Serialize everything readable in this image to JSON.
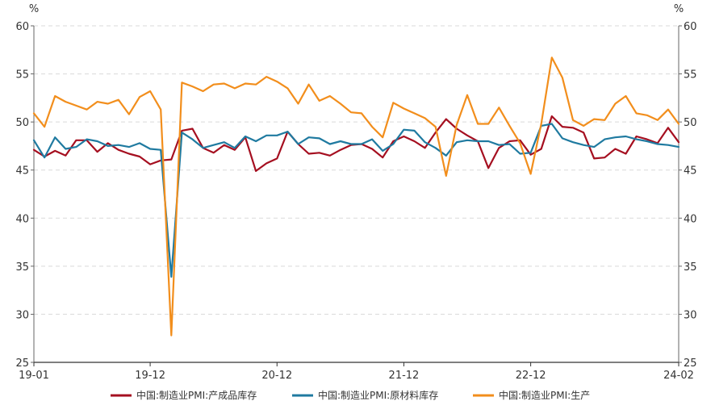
{
  "chart_data": {
    "type": "line",
    "title": "",
    "left_unit": "%",
    "right_unit": "%",
    "ylim": [
      25,
      60
    ],
    "yticks": [
      25,
      30,
      35,
      40,
      45,
      50,
      55,
      60
    ],
    "grid": true,
    "legend_position": "bottom",
    "x": [
      "19-01",
      "19-02",
      "19-03",
      "19-04",
      "19-05",
      "19-06",
      "19-07",
      "19-08",
      "19-09",
      "19-10",
      "19-11",
      "19-12",
      "20-01",
      "20-02",
      "20-03",
      "20-04",
      "20-05",
      "20-06",
      "20-07",
      "20-08",
      "20-09",
      "20-10",
      "20-11",
      "20-12",
      "21-01",
      "21-02",
      "21-03",
      "21-04",
      "21-05",
      "21-06",
      "21-07",
      "21-08",
      "21-09",
      "21-10",
      "21-11",
      "21-12",
      "22-01",
      "22-02",
      "22-03",
      "22-04",
      "22-05",
      "22-06",
      "22-07",
      "22-08",
      "22-09",
      "22-10",
      "22-11",
      "22-12",
      "23-01",
      "23-02",
      "23-03",
      "23-04",
      "23-05",
      "23-06",
      "23-07",
      "23-08",
      "23-09",
      "23-10",
      "23-11",
      "23-12",
      "24-01",
      "24-02"
    ],
    "x_tick_labels": [
      {
        "index": 0,
        "label": "19-01"
      },
      {
        "index": 11,
        "label": "19-12"
      },
      {
        "index": 23,
        "label": "20-12"
      },
      {
        "index": 35,
        "label": "21-12"
      },
      {
        "index": 47,
        "label": "22-12"
      },
      {
        "index": 61,
        "label": "24-02"
      }
    ],
    "series": [
      {
        "name": "中国:制造业PMI:产成品库存",
        "color": "#a50f20",
        "values": [
          47.1,
          46.4,
          47.0,
          46.5,
          48.1,
          48.1,
          46.9,
          47.8,
          47.1,
          46.7,
          46.4,
          45.6,
          46.0,
          46.1,
          49.1,
          49.3,
          47.3,
          46.8,
          47.6,
          47.1,
          48.4,
          44.9,
          45.7,
          46.2,
          49.0,
          47.7,
          46.7,
          46.8,
          46.5,
          47.1,
          47.6,
          47.7,
          47.2,
          46.3,
          48.0,
          48.5,
          48.0,
          47.3,
          48.9,
          50.3,
          49.3,
          48.6,
          48.0,
          45.2,
          47.3,
          48.0,
          48.1,
          46.6,
          47.2,
          50.6,
          49.5,
          49.4,
          48.9,
          46.2,
          46.3,
          47.2,
          46.7,
          48.5,
          48.2,
          47.8,
          49.4,
          47.9
        ]
      },
      {
        "name": "中国:制造业PMI:原材料库存",
        "color": "#1f7aa0",
        "values": [
          48.1,
          46.3,
          48.4,
          47.2,
          47.4,
          48.2,
          48.0,
          47.5,
          47.6,
          47.4,
          47.8,
          47.2,
          47.1,
          33.9,
          48.9,
          48.2,
          47.3,
          47.6,
          47.9,
          47.3,
          48.5,
          48.0,
          48.6,
          48.6,
          49.0,
          47.7,
          48.4,
          48.3,
          47.7,
          48.0,
          47.7,
          47.7,
          48.2,
          47.0,
          47.7,
          49.2,
          49.1,
          47.9,
          47.3,
          46.5,
          47.9,
          48.1,
          48.0,
          48.0,
          47.6,
          47.7,
          46.7,
          46.8,
          49.6,
          49.8,
          48.3,
          47.9,
          47.6,
          47.4,
          48.2,
          48.4,
          48.5,
          48.2,
          48.0,
          47.7,
          47.6,
          47.4
        ]
      },
      {
        "name": "中国:制造业PMI:生产",
        "color": "#f28e1c",
        "values": [
          50.9,
          49.5,
          52.7,
          52.1,
          51.7,
          51.3,
          52.1,
          51.9,
          52.3,
          50.8,
          52.6,
          53.2,
          51.3,
          27.8,
          54.1,
          53.7,
          53.2,
          53.9,
          54.0,
          53.5,
          54.0,
          53.9,
          54.7,
          54.2,
          53.5,
          51.9,
          53.9,
          52.2,
          52.7,
          51.9,
          51.0,
          50.9,
          49.5,
          48.4,
          52.0,
          51.4,
          50.9,
          50.4,
          49.5,
          44.4,
          49.7,
          52.8,
          49.8,
          49.8,
          51.5,
          49.6,
          47.8,
          44.6,
          49.8,
          56.7,
          54.6,
          50.2,
          49.6,
          50.3,
          50.2,
          51.9,
          52.7,
          50.9,
          50.7,
          50.2,
          51.3,
          49.8
        ]
      }
    ]
  }
}
